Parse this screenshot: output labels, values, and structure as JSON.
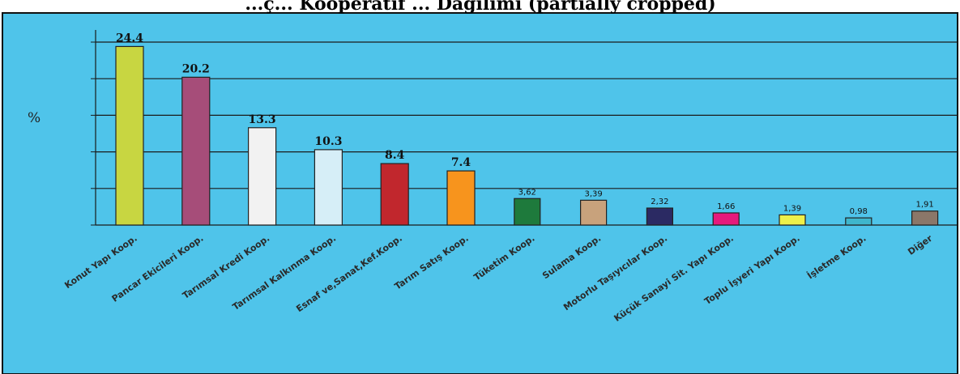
{
  "title": "...ç... Kooperatif ... Dağılımı (partially cropped)",
  "colors": {
    "background": "#4fc4ea",
    "border": "#111111",
    "grid": "#1a1a1a"
  },
  "chart_data": {
    "type": "bar",
    "ylabel": "%",
    "ylim": [
      0,
      25
    ],
    "grid": true,
    "categories": [
      "Konut Yapı Koop.",
      "Pancar Ekicileri Koop.",
      "Tarımsal Kredi Koop.",
      "Tarımsal Kalkınma Koop.",
      "Esnaf ve,Sanat,Kef.Koop.",
      "Tarım Satış Koop.",
      "Tüketim Koop.",
      "Sulama Koop.",
      "Motorlu Taşıyıcılar Koop.",
      "Küçük Sanayi Sit. Yapı Koop.",
      "Toplu İşyeri Yapı Koop.",
      "İşletme Koop.",
      "Diğer"
    ],
    "values": [
      24.4,
      20.2,
      13.3,
      10.3,
      8.4,
      7.4,
      3.62,
      3.39,
      2.32,
      1.66,
      1.39,
      0.98,
      1.91
    ],
    "value_labels": [
      "24.4",
      "20.2",
      "13.3",
      "10.3",
      "8.4",
      "7.4",
      "3,62",
      "3,39",
      "2,32",
      "1,66",
      "1,39",
      "0,98",
      "1,91"
    ],
    "bar_colors": [
      "#c8d641",
      "#a64d79",
      "#f2f2f2",
      "#d6eef7",
      "#c1272d",
      "#f7941d",
      "#1e7a3c",
      "#c8a27c",
      "#2b2a63",
      "#e6197c",
      "#eef04a",
      "#3fb6cc",
      "#8b7769"
    ]
  }
}
